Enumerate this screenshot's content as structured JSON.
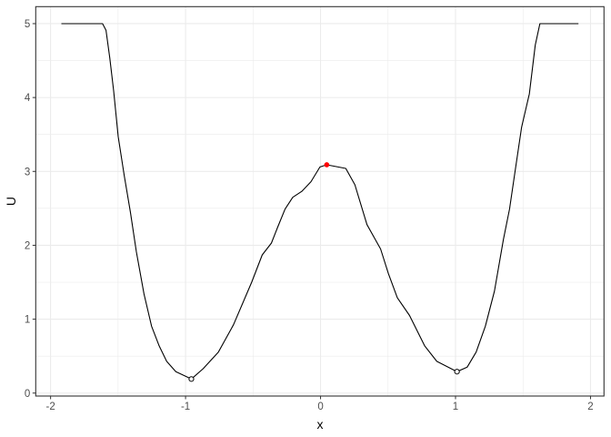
{
  "chart_data": {
    "type": "line",
    "title": "",
    "xlabel": "x",
    "ylabel": "U",
    "xlim": [
      -2.11,
      2.1
    ],
    "ylim": [
      -0.04,
      5.23
    ],
    "xticks": [
      -2,
      -1,
      0,
      1,
      2
    ],
    "yticks": [
      0,
      1,
      2,
      3,
      4,
      5
    ],
    "grid": true,
    "legend": "none",
    "colors": {
      "line": "#000000",
      "highlight_point": "#ff0000",
      "grid": "#ebebeb",
      "panel_border": "#333333",
      "tick_label": "#4d4d4d"
    },
    "series": [
      {
        "x": [
          -1.92,
          -1.615,
          -1.589,
          -1.562,
          -1.533,
          -1.499,
          -1.454,
          -1.409,
          -1.364,
          -1.308,
          -1.252,
          -1.196,
          -1.14,
          -1.072,
          -0.957,
          -0.87,
          -0.757,
          -0.645,
          -0.51,
          -0.432,
          -0.364,
          -0.319,
          -0.263,
          -0.206,
          -0.139,
          -0.071,
          -0.004,
          0.046,
          0.187,
          0.254,
          0.344,
          0.445,
          0.502,
          0.569,
          0.659,
          0.771,
          0.861,
          1.011,
          1.086,
          1.153,
          1.221,
          1.288,
          1.355,
          1.4,
          1.446,
          1.49,
          1.547,
          1.591,
          1.625,
          1.911
        ],
        "y": [
          5,
          5,
          4.91,
          4.54,
          4.09,
          3.47,
          2.94,
          2.45,
          1.91,
          1.34,
          0.905,
          0.64,
          0.43,
          0.29,
          0.19,
          0.33,
          0.555,
          0.925,
          1.5,
          1.87,
          2.03,
          2.24,
          2.49,
          2.65,
          2.73,
          2.86,
          3.06,
          3.09,
          3.04,
          2.82,
          2.28,
          1.95,
          1.62,
          1.29,
          1.05,
          0.64,
          0.43,
          0.29,
          0.35,
          0.555,
          0.905,
          1.38,
          2.08,
          2.49,
          3.06,
          3.6,
          4.05,
          4.71,
          5,
          5
        ]
      }
    ],
    "minima_points": [
      {
        "x": -0.957,
        "y": 0.19
      },
      {
        "x": 1.011,
        "y": 0.29
      }
    ],
    "maximum_point": {
      "x": 0.046,
      "y": 3.09
    }
  }
}
